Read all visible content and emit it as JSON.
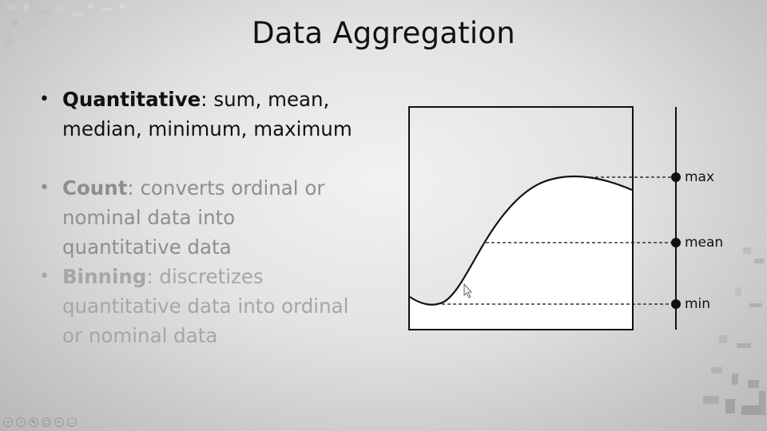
{
  "slide": {
    "title": "Data Aggregation",
    "bullets": [
      {
        "term": "Quantitative",
        "text": ": sum, mean, median, minimum, maximum"
      },
      {
        "term": "Count",
        "text": ": converts ordinal or nominal data into quantitative data"
      },
      {
        "term": "Binning",
        "text": ": discretizes quantitative data into ordinal or nominal data"
      }
    ]
  },
  "diagram": {
    "labels": {
      "max": "max",
      "mean": "mean",
      "min": "min"
    }
  },
  "toolbar": {
    "icons": [
      "prev-icon",
      "next-icon",
      "pen-icon",
      "slides-icon",
      "zoom-icon",
      "more-icon"
    ]
  }
}
